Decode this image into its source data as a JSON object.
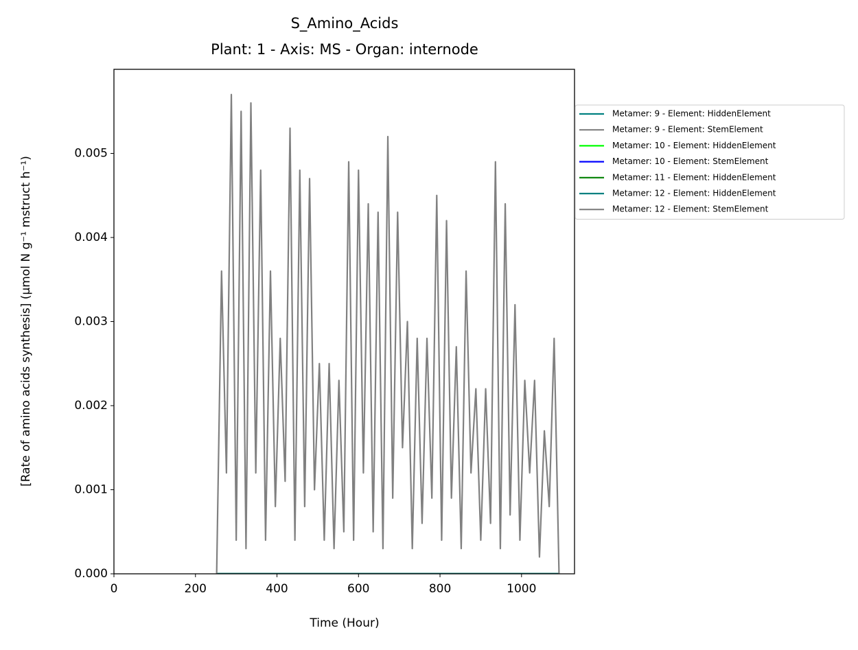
{
  "chart_data": {
    "type": "line",
    "title": "S_Amino_Acids",
    "subtitle": "Plant: 1 - Axis: MS - Organ: internode",
    "x_label": "Time (Hour)",
    "y_label": "[Rate of amino acids synthesis] (µmol N g⁻¹ mstruct h⁻¹)",
    "xlim": [
      0,
      1130
    ],
    "xticks": [
      0,
      200,
      400,
      600,
      800,
      1000
    ],
    "ylim": [
      0,
      0.006
    ],
    "yticks": [
      {
        "value": 0,
        "label": "0.000"
      },
      0.001,
      0.002,
      0.003,
      0.004,
      0.005
    ],
    "legend": "outside right",
    "series": [
      {
        "name": "Metamer: 9 - Element: HiddenElement",
        "color": "#008080",
        "x": [
          252,
          1092
        ],
        "values": [
          0,
          0
        ]
      },
      {
        "name": "Metamer: 9 - Element: StemElement",
        "color": "#808080",
        "x": [
          252,
          1092
        ],
        "values": [
          0,
          0
        ]
      },
      {
        "name": "Metamer: 10 - Element: HiddenElement",
        "color": "#00ff00",
        "x": [
          252,
          1092
        ],
        "values": [
          0,
          0
        ]
      },
      {
        "name": "Metamer: 10 - Element: StemElement",
        "color": "#0000ff",
        "x": [
          252,
          1092
        ],
        "values": [
          0,
          0
        ]
      },
      {
        "name": "Metamer: 11 - Element: HiddenElement",
        "color": "#008000",
        "x": [
          252,
          1092
        ],
        "values": [
          0,
          0
        ]
      },
      {
        "name": "Metamer: 12 - Element: HiddenElement",
        "color": "#008080",
        "x": [
          252,
          1092
        ],
        "values": [
          0,
          0
        ]
      },
      {
        "name": "Metamer: 12 - Element: StemElement",
        "color": "#808080",
        "x": [
          252,
          264,
          276,
          288,
          300,
          312,
          324,
          336,
          348,
          360,
          372,
          384,
          396,
          408,
          420,
          432,
          444,
          456,
          468,
          480,
          492,
          504,
          516,
          528,
          540,
          552,
          564,
          576,
          588,
          600,
          612,
          624,
          636,
          648,
          660,
          672,
          684,
          696,
          708,
          720,
          732,
          744,
          756,
          768,
          780,
          792,
          804,
          816,
          828,
          840,
          852,
          864,
          876,
          888,
          900,
          912,
          924,
          936,
          948,
          960,
          972,
          984,
          996,
          1008,
          1020,
          1032,
          1044,
          1056,
          1068,
          1080,
          1092
        ],
        "values": [
          0,
          0.0036,
          0.0012,
          0.0057,
          0.0004,
          0.0055,
          0.0003,
          0.0056,
          0.0012,
          0.0048,
          0.0004,
          0.0036,
          0.0008,
          0.0028,
          0.0011,
          0.0053,
          0.0004,
          0.0048,
          0.0008,
          0.0047,
          0.001,
          0.0025,
          0.0004,
          0.0025,
          0.0003,
          0.0023,
          0.0005,
          0.0049,
          0.0004,
          0.0048,
          0.0012,
          0.0044,
          0.0005,
          0.0043,
          0.0003,
          0.0052,
          0.0009,
          0.0043,
          0.0015,
          0.003,
          0.0003,
          0.0028,
          0.0006,
          0.0028,
          0.0009,
          0.0045,
          0.0004,
          0.0042,
          0.0009,
          0.0027,
          0.0003,
          0.0036,
          0.0012,
          0.0022,
          0.0004,
          0.0022,
          0.0006,
          0.0049,
          0.0003,
          0.0044,
          0.0007,
          0.0032,
          0.0004,
          0.0023,
          0.0012,
          0.0023,
          0.0002,
          0.0017,
          0.0008,
          0.0028,
          0
        ]
      }
    ]
  }
}
